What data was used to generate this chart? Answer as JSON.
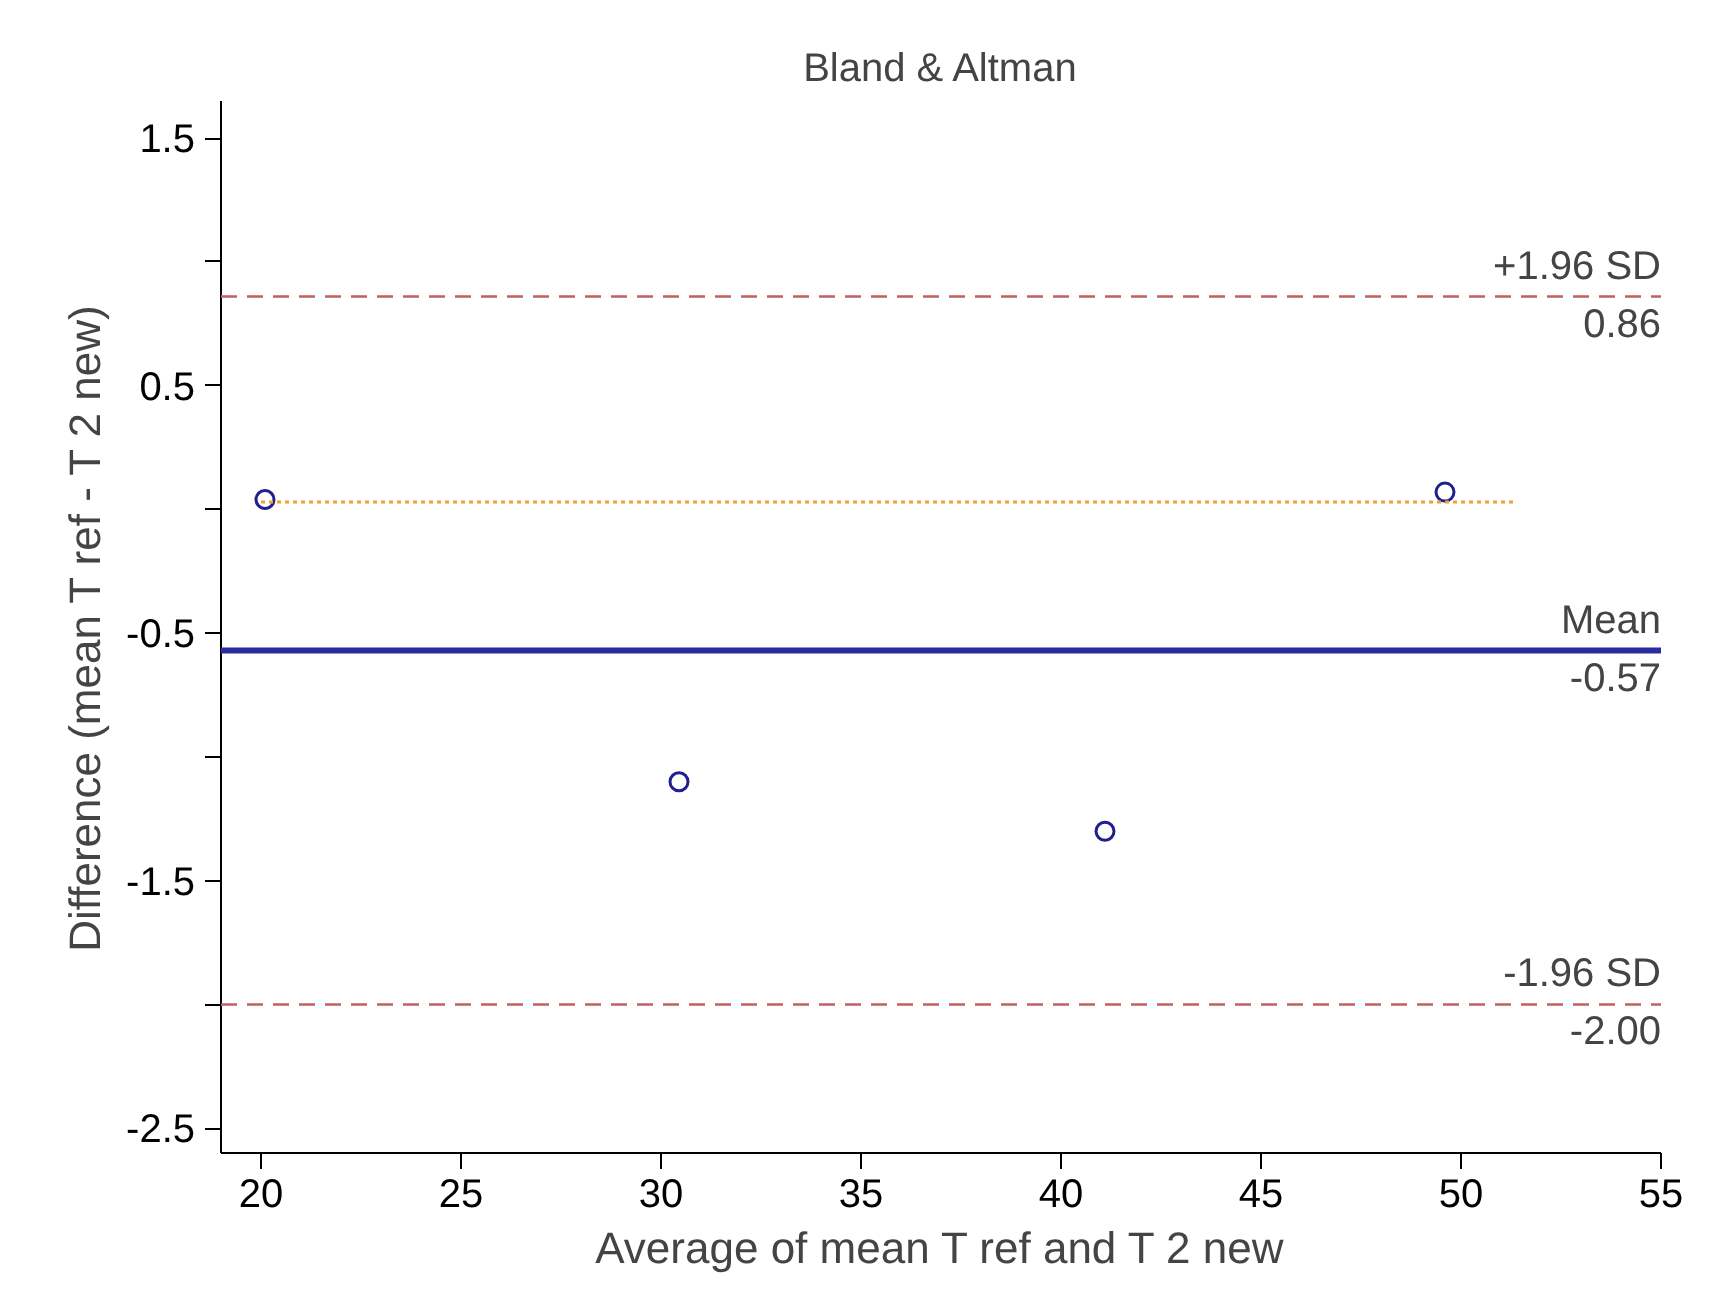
{
  "chart_data": {
    "type": "scatter",
    "title": "Bland & Altman",
    "xlabel": "Average of mean T ref and T 2 new",
    "ylabel": "Difference (mean T ref - T 2 new)",
    "series": [
      {
        "color": "#1f1f8f",
        "marker": "circle",
        "x": [
          20.1,
          30.45,
          41.1,
          49.6
        ],
        "values": [
          0.04,
          -1.1,
          -1.3,
          0.07
        ]
      },
      {
        "type": "line",
        "color": "#f5a030",
        "line_style": "dotted",
        "x": [
          20.0,
          51.4
        ],
        "values": [
          0.03,
          0.03
        ]
      }
    ],
    "xlim": [
      19,
      55
    ],
    "ylim": [
      -2.6,
      1.65
    ],
    "xticks": [
      20,
      25,
      30,
      35,
      40,
      45,
      50,
      55
    ],
    "yticks": [
      {
        "value": 1.5,
        "label": "1.5"
      },
      {
        "value": 1.0,
        "label": null
      },
      {
        "value": 0.5,
        "label": "0.5"
      },
      {
        "value": 0.0,
        "label": null
      },
      {
        "value": -0.5,
        "label": "-0.5"
      },
      {
        "value": -1.0,
        "label": null
      },
      {
        "value": -1.5,
        "label": "-1.5"
      },
      {
        "value": -2.0,
        "label": null
      },
      {
        "value": -2.5,
        "label": "-2.5"
      }
    ],
    "ref_lines": [
      {
        "axis": "y",
        "value": 0.86,
        "label": "+1.96 SD",
        "color": "#c06060",
        "line_style": "dashed"
      },
      {
        "axis": "y",
        "value": -0.57,
        "label": "Mean",
        "color": "#2b2ba0",
        "line_style": "solid"
      },
      {
        "axis": "y",
        "value": -2.0,
        "label": "-1.96 SD",
        "color": "#c06060",
        "line_style": "dashed"
      }
    ],
    "annotations": [
      {
        "text": "0.86",
        "y": 0.86
      },
      {
        "text": "-0.57",
        "y": -0.57
      },
      {
        "text": "-2.00",
        "y": -2.0
      }
    ]
  }
}
